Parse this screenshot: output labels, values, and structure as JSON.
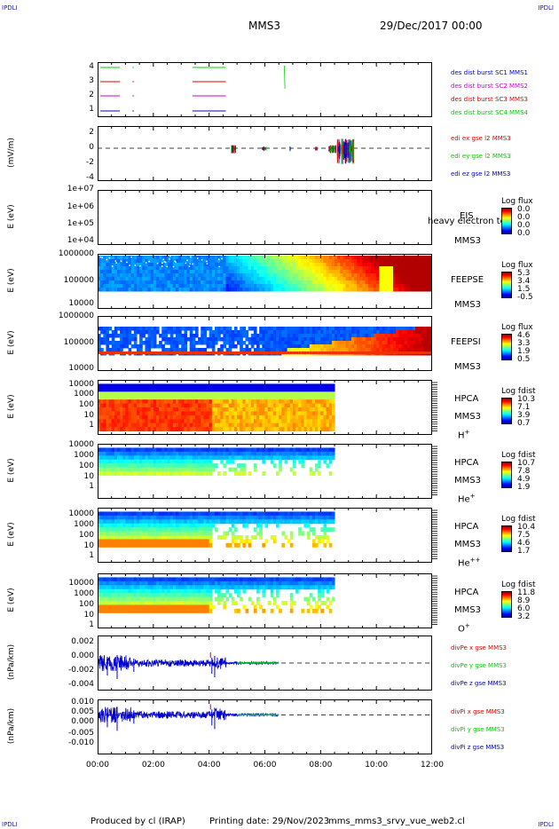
{
  "header": {
    "corner_tl": "IPDLI",
    "corner_tr": "IPDLI",
    "corner_bl": "IPDLI",
    "corner_br": "IPDLI",
    "mission": "MMS3",
    "datetime": "29/Dec/2017 00:00"
  },
  "footer": {
    "produced_by": "Produced by cl (IRAP)",
    "printing_date": "Printing date: 29/Nov/2023",
    "file": "mms_mms3_srvy_vue_web2.cl"
  },
  "x_axis": {
    "ticks": [
      "00:00",
      "02:00",
      "04:00",
      "06:00",
      "08:00",
      "10:00",
      "12:00"
    ],
    "range_hours": [
      0,
      12
    ]
  },
  "colors": {
    "blue": "#0000cc",
    "magenta": "#cc00cc",
    "red": "#dd0000",
    "green": "#00cc00"
  },
  "chart_data": [
    {
      "type": "line",
      "panel": "burst",
      "yticks": [
        "4",
        "3",
        "2",
        "1"
      ],
      "series": [
        {
          "name": "des dist burst SC1 MMS1",
          "color": "#0000cc",
          "y": 1,
          "x": [
            [
              0.1,
              0.8
            ],
            [
              1.25,
              1.3
            ],
            [
              3.4,
              4.6
            ]
          ]
        },
        {
          "name": "des dist burst SC2 MMS2",
          "color": "#cc00cc",
          "y": 2,
          "x": [
            [
              0.1,
              0.8
            ],
            [
              1.25,
              1.3
            ],
            [
              3.4,
              4.6
            ]
          ]
        },
        {
          "name": "des dist burst SC3 MMS3",
          "color": "#dd0000",
          "y": 3,
          "x": [
            [
              0.1,
              0.8
            ],
            [
              1.25,
              1.3
            ],
            [
              3.4,
              4.6
            ]
          ]
        },
        {
          "name": "des dist burst SC4 MMS4",
          "color": "#00cc00",
          "y": 4,
          "x": [
            [
              0.1,
              0.8
            ],
            [
              1.25,
              1.3
            ],
            [
              3.4,
              4.6
            ]
          ]
        }
      ]
    },
    {
      "type": "line",
      "panel": "edi",
      "ylabel": "(mV/m)",
      "yticks": [
        "2",
        "0",
        "-2",
        "-4"
      ],
      "ylim": [
        -5,
        2.6
      ],
      "series": [
        {
          "name": "edi ex gse l2 MMS3",
          "color": "#dd0000"
        },
        {
          "name": "edi ey gse l2 MMS3",
          "color": "#00cc00"
        },
        {
          "name": "edi ez gse l2 MMS3",
          "color": "#0000cc"
        }
      ]
    },
    {
      "type": "heatmap",
      "panel": "eis",
      "ylabel": "E (eV)",
      "yticks": [
        "1e+07",
        "1e+06",
        "1e+05",
        "1e+04"
      ],
      "instrument": [
        "EIS",
        "MMS3"
      ],
      "overlay_text": "heavy electron to",
      "colorbar": {
        "title": "Log flux",
        "labels": [
          "0.0",
          "0.0",
          "0.0",
          "0.0"
        ]
      }
    },
    {
      "type": "heatmap",
      "panel": "feepse",
      "ylabel": "E (eV)",
      "yticks": [
        "1000000",
        "100000",
        "10000"
      ],
      "instrument": [
        "FEEPSE",
        "MMS3"
      ],
      "colorbar": {
        "title": "Log flux",
        "labels": [
          "5.3",
          "3.4",
          "1.5",
          "-0.5"
        ]
      }
    },
    {
      "type": "heatmap",
      "panel": "feepsi",
      "ylabel": "E (eV)",
      "yticks": [
        "1000000",
        "100000",
        "10000"
      ],
      "instrument": [
        "FEEPSI",
        "MMS3"
      ],
      "colorbar": {
        "title": "Log flux",
        "labels": [
          "4.6",
          "3.3",
          "1.9",
          "0.5"
        ]
      }
    },
    {
      "type": "heatmap",
      "panel": "hpca_h",
      "ylabel": "E (eV)",
      "yticks": [
        "10000",
        "1000",
        "100",
        "10",
        "1"
      ],
      "instrument": [
        "HPCA",
        "MMS3",
        "H",
        "+"
      ],
      "colorbar": {
        "title": "Log fdist",
        "labels": [
          "10.3",
          "7.1",
          "3.9",
          "0.7"
        ]
      }
    },
    {
      "type": "heatmap",
      "panel": "hpca_he",
      "ylabel": "E (eV)",
      "yticks": [
        "10000",
        "1000",
        "100",
        "10",
        "1"
      ],
      "instrument": [
        "HPCA",
        "MMS3",
        "He",
        "+"
      ],
      "colorbar": {
        "title": "Log fdist",
        "labels": [
          "10.7",
          "7.8",
          "4.9",
          "1.9"
        ]
      }
    },
    {
      "type": "heatmap",
      "panel": "hpca_hepp",
      "ylabel": "E (eV)",
      "yticks": [
        "10000",
        "1000",
        "100",
        "10",
        "1"
      ],
      "instrument": [
        "HPCA",
        "MMS3",
        "He",
        "++"
      ],
      "colorbar": {
        "title": "Log fdist",
        "labels": [
          "10.4",
          "7.5",
          "4.6",
          "1.7"
        ]
      }
    },
    {
      "type": "heatmap",
      "panel": "hpca_o",
      "ylabel": "E (eV)",
      "yticks": [
        "10000",
        "1000",
        "100",
        "10",
        "1"
      ],
      "instrument": [
        "HPCA",
        "MMS3",
        "O",
        "+"
      ],
      "colorbar": {
        "title": "Log fdist",
        "labels": [
          "11.8",
          "8.9",
          "6.0",
          "3.2"
        ]
      }
    },
    {
      "type": "line",
      "panel": "divpe",
      "ylabel": "(nPa/km)",
      "yticks": [
        "0.002",
        "0.000",
        "-0.002",
        "-0.004"
      ],
      "ylim": [
        -0.0042,
        0.003
      ],
      "series": [
        {
          "name": "divPe x gse MMS3",
          "color": "#dd0000"
        },
        {
          "name": "divPe y gse MMS3",
          "color": "#00cc00"
        },
        {
          "name": "divPe z gse MMS3",
          "color": "#0000cc"
        }
      ]
    },
    {
      "type": "line",
      "panel": "divpi",
      "ylabel": "(nPa/km)",
      "yticks": [
        "0.010",
        "0.005",
        "0.000",
        "-0.005",
        "-0.010"
      ],
      "ylim": [
        -0.013,
        0.012
      ],
      "series": [
        {
          "name": "divPi x gse MMS3",
          "color": "#dd0000"
        },
        {
          "name": "divPi y gse MMS3",
          "color": "#00cc00"
        },
        {
          "name": "divPi z gse MMS3",
          "color": "#0000cc"
        }
      ]
    }
  ]
}
